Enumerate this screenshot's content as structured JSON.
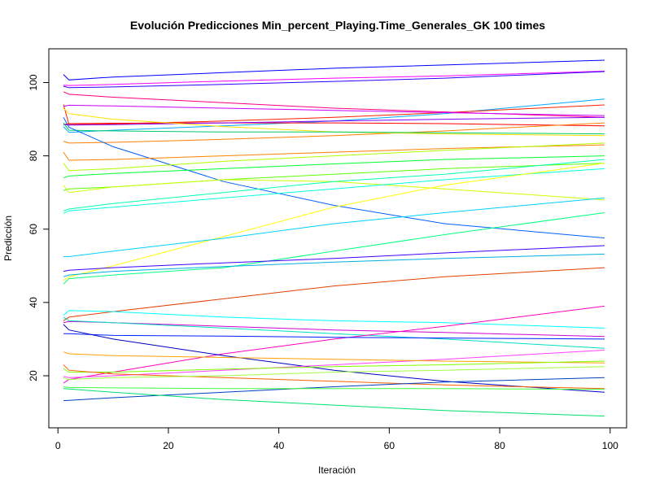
{
  "chart_data": {
    "type": "line",
    "title": "Evolución Predicciones Min_percent_Playing.Time_Generales_GK 100 times",
    "xlabel": "Iteración",
    "ylabel": "Predicción",
    "xlim": [
      1,
      99
    ],
    "ylim": [
      12,
      106
    ],
    "x_ticks": [
      0,
      20,
      40,
      60,
      80,
      100
    ],
    "y_ticks": [
      20,
      40,
      60,
      80,
      100
    ],
    "grid": false,
    "legend": "none",
    "x_points": [
      1,
      2,
      10,
      30,
      50,
      70,
      99
    ],
    "series": [
      {
        "color": "#0000FF",
        "values": [
          102.2,
          100.7,
          101.5,
          102.7,
          103.9,
          104.8,
          106.1
        ]
      },
      {
        "color": "#FF00FF",
        "values": [
          99.3,
          99.2,
          99.5,
          100.4,
          101.2,
          101.8,
          103.1
        ]
      },
      {
        "color": "#2A00FF",
        "values": [
          99.0,
          98.6,
          98.8,
          99.5,
          100.3,
          101.2,
          103.0
        ]
      },
      {
        "color": "#00AAFF",
        "values": [
          88.0,
          86.4,
          87.0,
          88.2,
          89.5,
          91.5,
          95.5
        ]
      },
      {
        "color": "#FF2000",
        "values": [
          94.0,
          88.5,
          88.7,
          89.5,
          90.5,
          91.8,
          93.9
        ]
      },
      {
        "color": "#FF0080",
        "values": [
          97.5,
          96.8,
          96.0,
          94.5,
          93.0,
          92.0,
          90.5
        ]
      },
      {
        "color": "#CC00FF",
        "values": [
          93.5,
          93.8,
          93.6,
          93.0,
          92.4,
          91.8,
          91.0
        ]
      },
      {
        "color": "#FF0000",
        "values": [
          88.5,
          88.8,
          88.9,
          89.0,
          89.0,
          88.8,
          88.2
        ]
      },
      {
        "color": "#FF7F00",
        "values": [
          84.0,
          83.5,
          83.7,
          84.5,
          85.5,
          86.8,
          89.0
        ]
      },
      {
        "color": "#8000FF",
        "values": [
          88.5,
          88.4,
          88.5,
          89.0,
          89.5,
          90.0,
          90.5
        ]
      },
      {
        "color": "#FFE000",
        "values": [
          93.0,
          91.5,
          90.0,
          88.0,
          86.5,
          86.0,
          85.5
        ]
      },
      {
        "color": "#00CC66",
        "values": [
          89.0,
          87.0,
          86.8,
          86.5,
          86.5,
          86.3,
          86.0
        ]
      },
      {
        "color": "#0060FF",
        "values": [
          90.5,
          87.8,
          82.5,
          73.0,
          66.5,
          61.5,
          57.6
        ]
      },
      {
        "color": "#FF8000",
        "values": [
          81.0,
          78.8,
          79.0,
          80.0,
          81.0,
          82.0,
          83.0
        ]
      },
      {
        "color": "#B0FF00",
        "values": [
          78.0,
          76.0,
          76.5,
          78.5,
          80.0,
          81.5,
          83.5
        ]
      },
      {
        "color": "#00FF30",
        "values": [
          74.0,
          74.5,
          75.2,
          76.5,
          77.8,
          79.0,
          80.0
        ]
      },
      {
        "color": "#60FF00",
        "values": [
          70.5,
          71.0,
          71.5,
          73.5,
          75.0,
          76.5,
          78.0
        ]
      },
      {
        "color": "#CCFF00",
        "values": [
          72.0,
          70.0,
          71.5,
          73.5,
          73.0,
          71.0,
          68.0
        ]
      },
      {
        "color": "#00FFB0",
        "values": [
          65.0,
          65.5,
          67.0,
          70.0,
          73.0,
          75.0,
          79.0
        ]
      },
      {
        "color": "#00FFE0",
        "values": [
          64.3,
          65.0,
          66.0,
          68.5,
          71.0,
          73.5,
          76.5
        ]
      },
      {
        "color": "#FFFF00",
        "values": [
          46.0,
          47.0,
          50.0,
          58.0,
          66.0,
          72.0,
          78.0
        ]
      },
      {
        "color": "#00D0FF",
        "values": [
          52.5,
          52.5,
          54.0,
          57.5,
          61.5,
          64.5,
          68.5
        ]
      },
      {
        "color": "#00FF80",
        "values": [
          45.0,
          46.5,
          47.5,
          49.5,
          54.0,
          58.5,
          64.5
        ]
      },
      {
        "color": "#4000FF",
        "values": [
          48.5,
          48.8,
          49.5,
          50.8,
          52.0,
          53.5,
          55.5
        ]
      },
      {
        "color": "#00B0E0",
        "values": [
          47.0,
          47.5,
          48.5,
          49.8,
          51.0,
          52.0,
          53.2
        ]
      },
      {
        "color": "#E04000",
        "values": [
          35.0,
          36.0,
          37.5,
          41.0,
          44.5,
          47.0,
          49.5
        ]
      },
      {
        "color": "#00FFFF",
        "values": [
          36.5,
          37.8,
          37.5,
          36.0,
          35.0,
          34.5,
          33.0
        ]
      },
      {
        "color": "#D000D0",
        "values": [
          34.5,
          34.8,
          34.5,
          33.5,
          32.5,
          31.8,
          30.7
        ]
      },
      {
        "color": "#00E0C0",
        "values": [
          36.0,
          35.0,
          34.5,
          33.0,
          31.5,
          30.0,
          27.5
        ]
      },
      {
        "color": "#FF00C0",
        "values": [
          18.0,
          19.0,
          21.0,
          26.0,
          30.0,
          33.5,
          39.0
        ]
      },
      {
        "color": "#0020FF",
        "values": [
          31.5,
          31.5,
          31.0,
          30.8,
          30.5,
          30.3,
          30.0
        ]
      },
      {
        "color": "#0000C0",
        "values": [
          34.0,
          32.5,
          30.0,
          25.5,
          21.5,
          18.5,
          15.5
        ]
      },
      {
        "color": "#FF40FF",
        "values": [
          19.8,
          19.5,
          20.0,
          21.5,
          23.0,
          24.5,
          27.0
        ]
      },
      {
        "color": "#FFA000",
        "values": [
          26.5,
          26.0,
          25.5,
          25.0,
          24.5,
          24.0,
          23.5
        ]
      },
      {
        "color": "#80FF00",
        "values": [
          22.0,
          21.0,
          21.0,
          21.8,
          22.5,
          23.0,
          24.0
        ]
      },
      {
        "color": "#FF6000",
        "values": [
          23.0,
          21.5,
          20.5,
          19.5,
          18.5,
          17.5,
          16.5
        ]
      },
      {
        "color": "#A0FF40",
        "values": [
          19.5,
          19.0,
          19.5,
          20.0,
          21.0,
          21.5,
          22.5
        ]
      },
      {
        "color": "#0040C0",
        "values": [
          13.2,
          13.3,
          14.0,
          15.5,
          17.0,
          18.3,
          19.5
        ]
      },
      {
        "color": "#40FF40",
        "values": [
          17.0,
          16.8,
          16.7,
          16.5,
          16.5,
          16.5,
          16.3
        ]
      },
      {
        "color": "#00E070",
        "values": [
          16.5,
          16.4,
          15.5,
          13.5,
          12.0,
          10.5,
          9.0
        ]
      }
    ]
  }
}
